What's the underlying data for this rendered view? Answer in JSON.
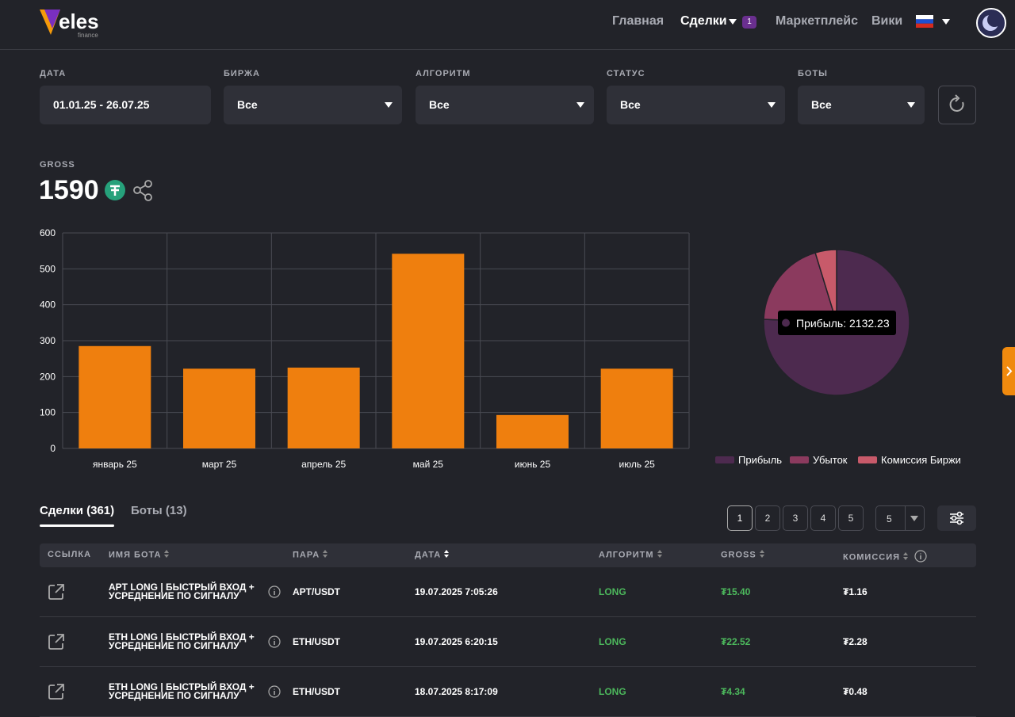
{
  "nav": {
    "logo": "eles",
    "logo_sub": "finance",
    "items": [
      "Главная",
      "Сделки",
      "Маркетплейс",
      "Вики"
    ],
    "badge": "1"
  },
  "filters": [
    {
      "label": "ДАТА",
      "value": "01.01.25 - 26.07.25"
    },
    {
      "label": "БИРЖА",
      "value": "Все"
    },
    {
      "label": "АЛГОРИТМ",
      "value": "Все"
    },
    {
      "label": "СТАТУС",
      "value": "Все"
    },
    {
      "label": "БОТЫ",
      "value": "Все"
    }
  ],
  "gross": {
    "label": "GROSS",
    "value": 1590
  },
  "chart_data": [
    {
      "type": "bar",
      "categories": [
        "январь 25",
        "март 25",
        "апрель 25",
        "май 25",
        "июнь 25",
        "июль 25"
      ],
      "values": [
        285,
        222,
        225,
        542,
        93,
        222
      ],
      "color": "#ef7f0e",
      "ylim": [
        0,
        600
      ],
      "yticks": [
        0,
        100,
        200,
        300,
        400,
        500,
        600
      ],
      "grid": true
    },
    {
      "type": "pie",
      "categories": [
        "Прибыль",
        "Убыток",
        "Комиссия Биржи"
      ],
      "values": [
        2132.23,
        552,
        133
      ],
      "colors": [
        "#4d2a4f",
        "#8b3a5e",
        "#c85a6a"
      ],
      "tooltip": "Прибыль: 2132.23",
      "legend": "bottom"
    }
  ],
  "tabs": [
    "Сделки (361)",
    "Боты (13)"
  ],
  "pagination": {
    "pages": [
      1,
      2,
      3,
      4,
      5
    ],
    "page_size": 5
  },
  "table": {
    "headers": [
      "ССЫЛКА",
      "ИМЯ БОТА",
      "ПАРА",
      "ДАТА",
      "АЛГОРИТМ",
      "GROSS",
      "КОМИССИЯ"
    ],
    "rows": [
      [
        "APT LONG | БЫСТРЫЙ ВХОД + УСРЕДНЕНИЕ ПО СИГНАЛУ",
        "APT/USDT",
        "19.07.2025 7:05:26",
        "LONG",
        "₮15.40",
        "₮1.16"
      ],
      [
        "ETH LONG | БЫСТРЫЙ ВХОД + УСРЕДНЕНИЕ ПО СИГНАЛУ",
        "ETH/USDT",
        "19.07.2025 6:20:15",
        "LONG",
        "₮22.52",
        "₮2.28"
      ],
      [
        "ETH LONG | БЫСТРЫЙ ВХОД + УСРЕДНЕНИЕ ПО СИГНАЛУ",
        "ETH/USDT",
        "18.07.2025 8:17:09",
        "LONG",
        "₮4.34",
        "₮0.48"
      ]
    ]
  }
}
